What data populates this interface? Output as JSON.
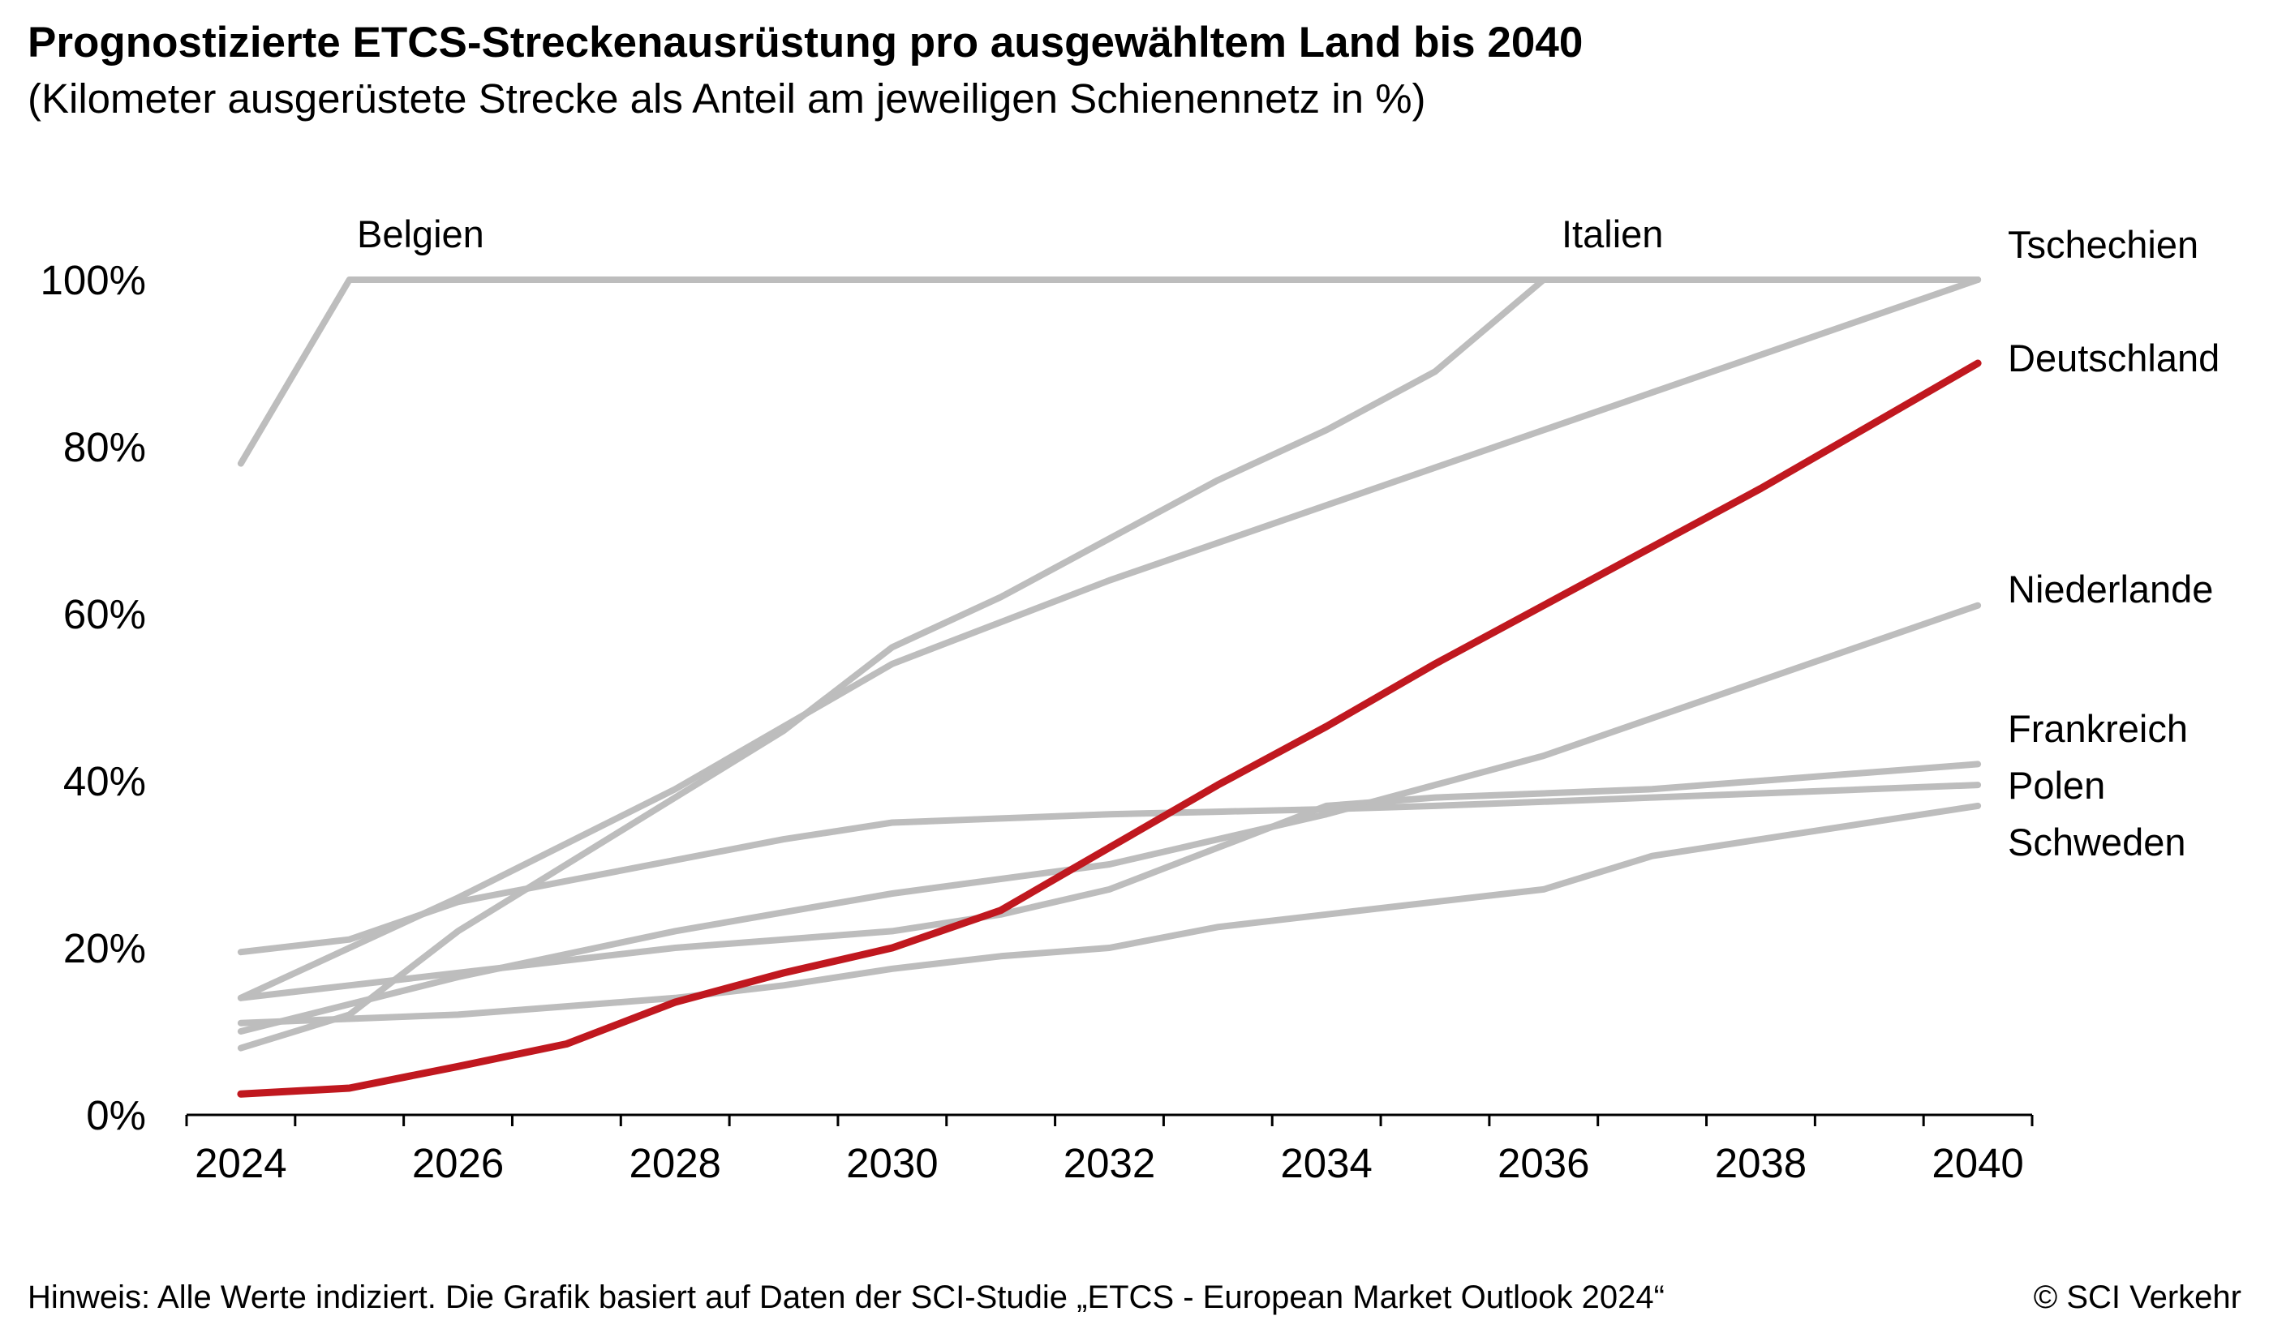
{
  "title": "Prognostizierte ETCS-Streckenausrüstung pro ausgewähltem Land bis 2040",
  "subtitle": "(Kilometer ausgerüstete Strecke als Anteil am jeweiligen Schienennetz in %)",
  "footnote": "Hinweis: Alle Werte indiziert. Die Grafik basiert auf Daten der SCI-Studie „ETCS - European Market Outlook 2024“",
  "copyright": "© SCI Verkehr",
  "colors": {
    "highlight": "#c0181f",
    "others": "#bdbdbd",
    "axis": "#000000"
  },
  "chart_data": {
    "type": "line",
    "title": "Prognostizierte ETCS-Streckenausrüstung pro ausgewähltem Land bis 2040",
    "subtitle": "(Kilometer ausgerüstete Strecke als Anteil am jeweiligen Schienennetz in %)",
    "xlabel": "",
    "ylabel": "",
    "xlim": [
      2023.5,
      2040.5
    ],
    "ylim": [
      0,
      100
    ],
    "x_ticks": [
      2024,
      2026,
      2028,
      2030,
      2032,
      2034,
      2036,
      2038,
      2040
    ],
    "x_tick_labels": [
      "2024",
      "2026",
      "2028",
      "2030",
      "2032",
      "2034",
      "2036",
      "2038",
      "2040"
    ],
    "y_ticks": [
      0,
      20,
      40,
      60,
      80,
      100
    ],
    "y_tick_labels": [
      "0%",
      "20%",
      "40%",
      "60%",
      "80%",
      "100%"
    ],
    "grid": false,
    "legend": "direct labels at line ends",
    "series": [
      {
        "name": "Belgien",
        "highlight": false,
        "x": [
          2024,
          2025,
          2040
        ],
        "y": [
          78,
          100,
          100
        ]
      },
      {
        "name": "Italien",
        "highlight": false,
        "x": [
          2024,
          2025,
          2026,
          2027,
          2028,
          2029,
          2030,
          2031,
          2032,
          2033,
          2034,
          2035,
          2036,
          2040
        ],
        "y": [
          8,
          12,
          22,
          30,
          38,
          46,
          56,
          62,
          69,
          76,
          82,
          89,
          100,
          100
        ]
      },
      {
        "name": "Tschechien",
        "highlight": false,
        "x": [
          2024,
          2026,
          2028,
          2030,
          2032,
          2034,
          2036,
          2038,
          2040
        ],
        "y": [
          14,
          26,
          39,
          54,
          64,
          73,
          82,
          91,
          100
        ]
      },
      {
        "name": "Deutschland",
        "highlight": true,
        "x": [
          2024,
          2025,
          2026,
          2027,
          2028,
          2029,
          2030,
          2031,
          2032,
          2033,
          2034,
          2035,
          2036,
          2037,
          2038,
          2039,
          2040
        ],
        "y": [
          2.5,
          3.2,
          5.8,
          8.5,
          13.5,
          17,
          20,
          24.5,
          32,
          39.5,
          46.5,
          54,
          61,
          68,
          75,
          82.5,
          90
        ]
      },
      {
        "name": "Niederlande",
        "highlight": false,
        "x": [
          2024,
          2026,
          2028,
          2030,
          2032,
          2034,
          2036,
          2038,
          2040
        ],
        "y": [
          10,
          16.5,
          22,
          26.5,
          30,
          36,
          43,
          52,
          61
        ]
      },
      {
        "name": "Frankreich",
        "highlight": false,
        "x": [
          2024,
          2025,
          2026,
          2027,
          2028,
          2029,
          2030,
          2031,
          2032,
          2033,
          2034,
          2035,
          2036,
          2037,
          2038,
          2039,
          2040
        ],
        "y": [
          14,
          15.5,
          17,
          18.5,
          20,
          21,
          22,
          24,
          27,
          32,
          37,
          38,
          38.5,
          39,
          40,
          41,
          42
        ]
      },
      {
        "name": "Polen",
        "highlight": false,
        "x": [
          2024,
          2025,
          2026,
          2027,
          2028,
          2029,
          2030,
          2031,
          2032,
          2033,
          2034,
          2035,
          2036,
          2037,
          2038,
          2039,
          2040
        ],
        "y": [
          19.5,
          21,
          25.5,
          28,
          30.5,
          33,
          35,
          35.5,
          36,
          36.3,
          36.6,
          37,
          37.5,
          38,
          38.5,
          39,
          39.5
        ]
      },
      {
        "name": "Schweden",
        "highlight": false,
        "x": [
          2024,
          2025,
          2026,
          2027,
          2028,
          2029,
          2030,
          2031,
          2032,
          2033,
          2034,
          2035,
          2036,
          2037,
          2038,
          2039,
          2040
        ],
        "y": [
          11,
          11.5,
          12,
          13,
          14,
          15.5,
          17.5,
          19,
          20,
          22.5,
          24,
          25.5,
          27,
          31,
          33,
          35,
          37
        ]
      }
    ]
  }
}
